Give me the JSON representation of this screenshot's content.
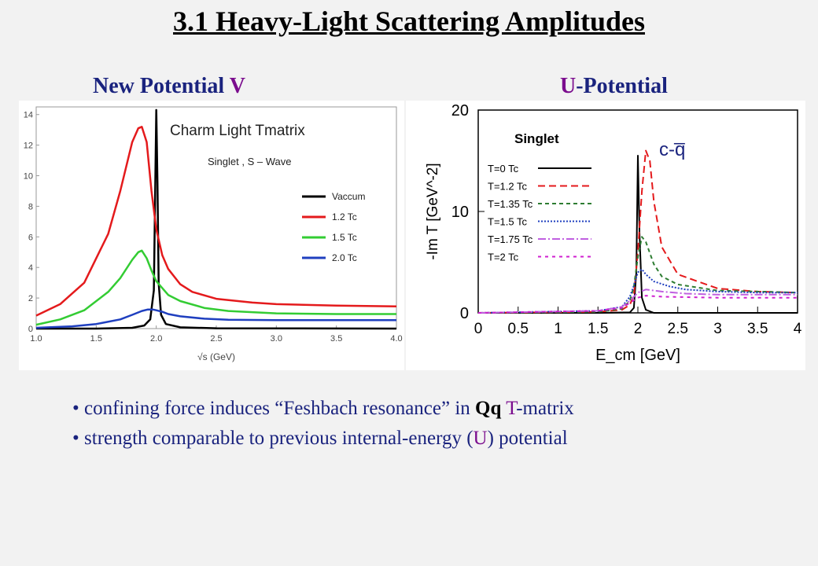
{
  "slide": {
    "title": "3.1 Heavy-Light Scattering Amplitudes",
    "left_heading_prefix": "New Potential ",
    "left_heading_accent": "V",
    "right_heading_accent": "U",
    "right_heading_suffix": "-Potential",
    "bullets": [
      {
        "lead": "confining force induces “Feshbach resonance” in ",
        "bold": "Qq",
        "accent": "T",
        "tail": "-matrix"
      },
      {
        "lead": "strength comparable to previous internal-energy (",
        "accent": "U",
        "tail": ") potential"
      }
    ],
    "accent_color": "#7b0d8e",
    "text_color": "#1a237e"
  },
  "chart_data": [
    {
      "type": "line",
      "title": "Charm Light Tmatrix",
      "subtitle": "Singlet , S – Wave",
      "xlabel": "√s (GeV)",
      "ylabel": "",
      "xlim": [
        1.0,
        4.0
      ],
      "ylim": [
        0,
        14.5
      ],
      "xticks": [
        "1.0",
        "1.5",
        "2.0",
        "2.5",
        "3.0",
        "3.5",
        "4.0"
      ],
      "yticks": [
        "0",
        "2",
        "4",
        "6",
        "8",
        "10",
        "12",
        "14"
      ],
      "legend": "right",
      "grid": false,
      "series": [
        {
          "name": "Vaccum",
          "color": "#000000",
          "x": [
            1.0,
            1.5,
            1.8,
            1.9,
            1.95,
            1.98,
            2.0,
            2.01,
            2.02,
            2.04,
            2.08,
            2.2,
            2.5,
            4.0
          ],
          "y": [
            0,
            0,
            0.05,
            0.2,
            0.6,
            2.5,
            14.3,
            9.5,
            3.0,
            0.9,
            0.3,
            0.08,
            0.02,
            0
          ]
        },
        {
          "name": "1.2 Tc",
          "color": "#e41a1c",
          "x": [
            1.0,
            1.2,
            1.4,
            1.6,
            1.7,
            1.8,
            1.85,
            1.88,
            1.92,
            1.96,
            2.0,
            2.05,
            2.1,
            2.2,
            2.3,
            2.5,
            2.8,
            3.0,
            3.5,
            4.0
          ],
          "y": [
            0.85,
            1.6,
            3.0,
            6.2,
            9.0,
            12.2,
            13.1,
            13.2,
            12.2,
            9.0,
            6.5,
            4.8,
            3.9,
            2.9,
            2.4,
            1.95,
            1.7,
            1.6,
            1.5,
            1.45
          ]
        },
        {
          "name": "1.5 Tc",
          "color": "#33cc33",
          "x": [
            1.0,
            1.2,
            1.4,
            1.6,
            1.7,
            1.8,
            1.85,
            1.88,
            1.92,
            1.96,
            2.0,
            2.1,
            2.2,
            2.4,
            2.6,
            3.0,
            3.5,
            4.0
          ],
          "y": [
            0.25,
            0.6,
            1.2,
            2.4,
            3.3,
            4.5,
            5.0,
            5.1,
            4.6,
            3.8,
            3.1,
            2.2,
            1.8,
            1.35,
            1.15,
            1.0,
            0.95,
            0.95
          ]
        },
        {
          "name": "2.0 Tc",
          "color": "#1f3fbf",
          "x": [
            1.0,
            1.3,
            1.5,
            1.7,
            1.8,
            1.88,
            1.93,
            1.97,
            2.0,
            2.05,
            2.1,
            2.2,
            2.4,
            2.6,
            3.0,
            4.0
          ],
          "y": [
            0.05,
            0.15,
            0.3,
            0.6,
            0.9,
            1.15,
            1.25,
            1.25,
            1.2,
            1.1,
            0.95,
            0.8,
            0.65,
            0.58,
            0.55,
            0.55
          ]
        }
      ]
    },
    {
      "type": "line",
      "title": "Singlet",
      "annotation": "c-q̅",
      "xlabel": "E_cm [GeV]",
      "ylabel": "-Im T [GeV^-2]",
      "xlim": [
        0,
        4
      ],
      "ylim": [
        0,
        20
      ],
      "xticks": [
        "0",
        "0.5",
        "1",
        "1.5",
        "2",
        "2.5",
        "3",
        "3.5",
        "4"
      ],
      "yticks": [
        "0",
        "10",
        "20"
      ],
      "legend": "left",
      "grid": false,
      "series": [
        {
          "name": "T=0 Tc",
          "color": "#000000",
          "dash": "",
          "x": [
            0,
            1.5,
            1.9,
            1.95,
            1.98,
            2.0,
            2.02,
            2.05,
            2.1,
            2.2,
            4.0
          ],
          "y": [
            0,
            0,
            0.05,
            0.5,
            4,
            15.5,
            8,
            1.5,
            0.3,
            0,
            0
          ]
        },
        {
          "name": "T=1.2 Tc",
          "color": "#e41a1c",
          "dash": "9,5",
          "x": [
            0,
            1.5,
            1.8,
            1.9,
            1.95,
            2.0,
            2.05,
            2.1,
            2.15,
            2.2,
            2.3,
            2.5,
            3.0,
            3.5,
            4.0
          ],
          "y": [
            0,
            0.1,
            0.3,
            0.8,
            1.8,
            6,
            12,
            16,
            15,
            11,
            6.5,
            3.8,
            2.4,
            2.1,
            2.0
          ]
        },
        {
          "name": "T=1.35 Tc",
          "color": "#2e7d32",
          "dash": "5,4",
          "x": [
            0,
            1.5,
            1.8,
            1.9,
            1.95,
            2.0,
            2.05,
            2.1,
            2.2,
            2.3,
            2.5,
            3.0,
            3.5,
            4.0
          ],
          "y": [
            0,
            0.1,
            0.4,
            1.2,
            2.6,
            5.5,
            7.5,
            7,
            4.8,
            3.6,
            2.8,
            2.2,
            2.1,
            2.0
          ]
        },
        {
          "name": "T=1.5 Tc",
          "color": "#1f3fbf",
          "dash": "2,2",
          "x": [
            0,
            1.5,
            1.8,
            1.9,
            1.95,
            2.0,
            2.05,
            2.1,
            2.2,
            2.4,
            2.6,
            3.0,
            3.5,
            4.0
          ],
          "y": [
            0,
            0.2,
            0.6,
            1.6,
            2.7,
            4.0,
            4.3,
            3.8,
            3.1,
            2.6,
            2.3,
            2.1,
            2.0,
            2.0
          ]
        },
        {
          "name": "T=1.75 Tc",
          "color": "#c060e0",
          "dash": "10,3,2,3",
          "x": [
            0,
            1.5,
            1.8,
            1.9,
            2.0,
            2.1,
            2.3,
            2.6,
            3.0,
            3.5,
            4.0
          ],
          "y": [
            0,
            0.2,
            0.6,
            1.2,
            2.0,
            2.3,
            2.1,
            1.9,
            1.8,
            1.8,
            1.8
          ]
        },
        {
          "name": "T=2 Tc",
          "color": "#d020d0",
          "dash": "4,5",
          "x": [
            0,
            1.5,
            1.8,
            1.9,
            2.0,
            2.1,
            2.3,
            2.6,
            3.0,
            3.5,
            4.0
          ],
          "y": [
            0,
            0.2,
            0.5,
            1.0,
            1.5,
            1.7,
            1.6,
            1.55,
            1.5,
            1.5,
            1.5
          ]
        }
      ]
    }
  ]
}
